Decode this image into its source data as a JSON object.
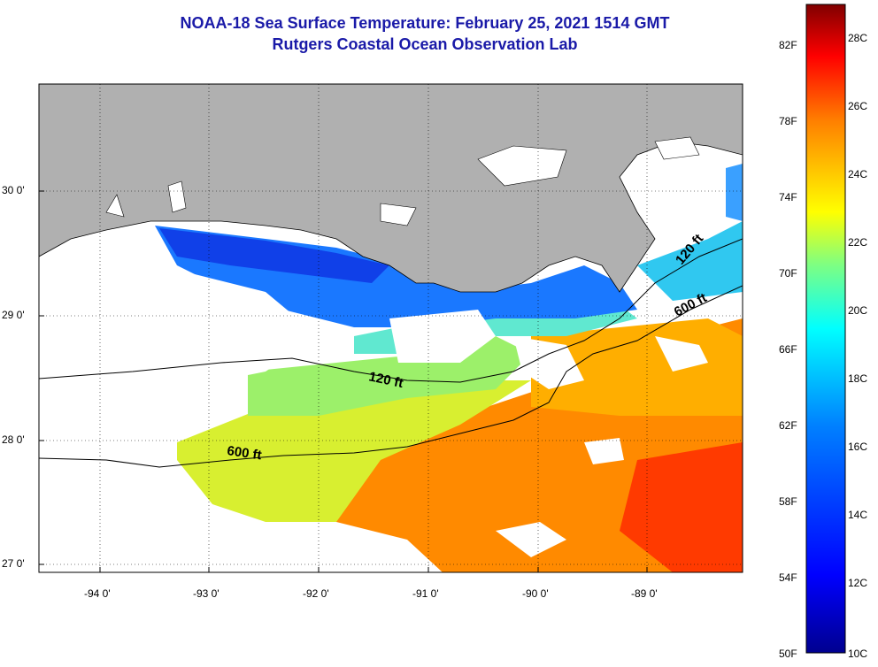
{
  "title": "NOAA-18 Sea Surface Temperature:  February 25, 2021 1514 GMT",
  "subtitle": "Rutgers Coastal Ocean Observation Lab",
  "lat_labels": [
    "30 0'",
    "29 0'",
    "28 0'",
    "27 0'"
  ],
  "lon_labels": [
    "-94 0'",
    "-93 0'",
    "-92 0'",
    "-91 0'",
    "-90 0'",
    "-89 0'"
  ],
  "contours": {
    "shallow": "120 ft",
    "deep": "600 ft"
  },
  "colorbar": {
    "fahrenheit": [
      "82F",
      "78F",
      "74F",
      "70F",
      "66F",
      "62F",
      "58F",
      "54F",
      "50F"
    ],
    "celsius": [
      "28C",
      "26C",
      "24C",
      "22C",
      "20C",
      "18C",
      "16C",
      "14C",
      "12C",
      "10C"
    ],
    "colors": [
      "#00008f",
      "#0000ff",
      "#0080ff",
      "#00ffff",
      "#80ff80",
      "#ffff00",
      "#ff8000",
      "#ff0000",
      "#800000"
    ]
  },
  "land_color": "#b0b0b0"
}
